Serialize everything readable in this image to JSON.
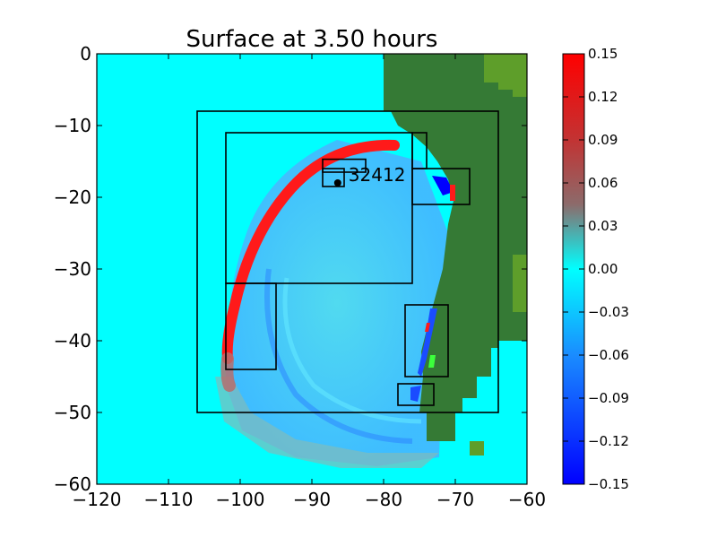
{
  "chart_data": {
    "type": "heatmap",
    "title": "Surface at 3.50 hours",
    "xlabel": "",
    "ylabel": "",
    "xlim": [
      -120,
      -60
    ],
    "ylim": [
      -60,
      0
    ],
    "x_ticks": [
      "−120",
      "−110",
      "−100",
      "−90",
      "−80",
      "−70",
      "−60"
    ],
    "y_ticks": [
      "0",
      "−10",
      "−20",
      "−30",
      "−40",
      "−50",
      "−60"
    ],
    "colorbar": {
      "range": [
        -0.15,
        0.15
      ],
      "ticks": [
        "0.15",
        "0.12",
        "0.09",
        "0.06",
        "0.03",
        "0.00",
        "−0.03",
        "−0.06",
        "−0.09",
        "−0.12",
        "−0.15"
      ],
      "colors": {
        "min": "#0000ff",
        "zero": "#00ffff",
        "max": "#ff0000"
      }
    },
    "background_color": "#00ffff",
    "land_color": "#357a35",
    "land_highlight_color": "#5e9e2a",
    "wave_front_color": "#ff1a1a",
    "gauge": {
      "label": "32412",
      "x": -86.4,
      "y": -18.0
    },
    "regions": [
      {
        "x0": -106,
        "x1": -64,
        "y0": -50,
        "y1": -8
      },
      {
        "x0": -102,
        "x1": -76,
        "y0": -32,
        "y1": -11
      },
      {
        "x0": -102,
        "x1": -95,
        "y0": -44,
        "y1": -32
      },
      {
        "x0": -88.5,
        "x1": -82.5,
        "y0": -16.5,
        "y1": -14.7
      },
      {
        "x0": -88.5,
        "x1": -85.5,
        "y0": -18.5,
        "y1": -16
      },
      {
        "x0": -76,
        "x1": -68,
        "y0": -21,
        "y1": -16
      },
      {
        "x0": -76,
        "x1": -74,
        "y0": -16,
        "y1": -11
      },
      {
        "x0": -77,
        "x1": -71,
        "y0": -45,
        "y1": -35
      },
      {
        "x0": -78,
        "x1": -73,
        "y0": -49,
        "y1": -46
      }
    ]
  }
}
